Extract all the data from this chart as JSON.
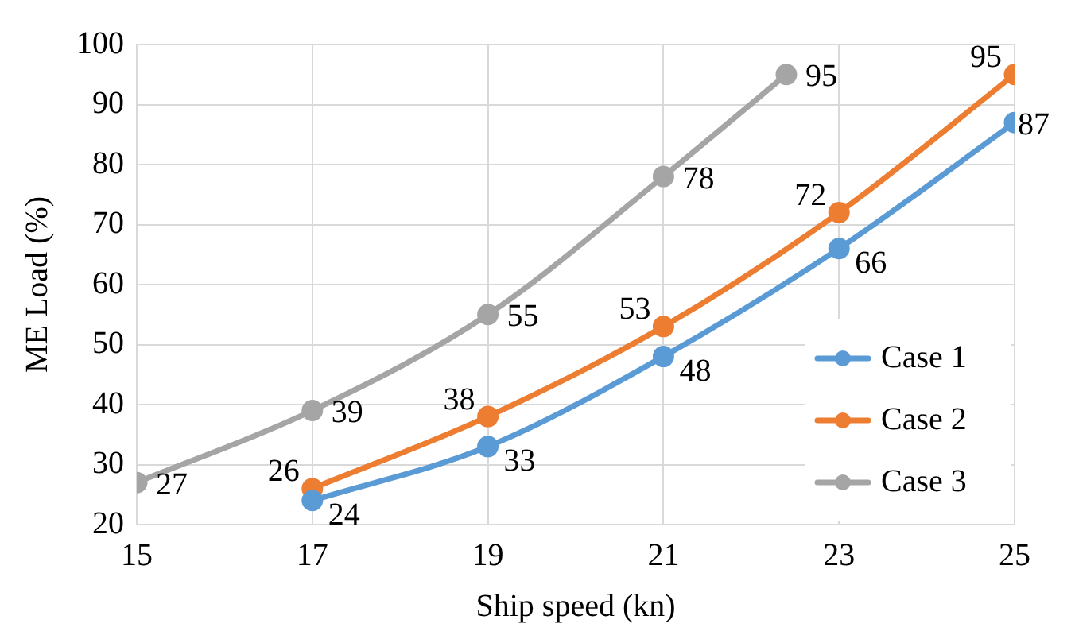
{
  "chart_data": {
    "type": "line",
    "xlabel": "Ship speed (kn)",
    "ylabel": "ME Load (%)",
    "xlim": [
      15,
      25
    ],
    "xticks": [
      15,
      17,
      19,
      21,
      23,
      25
    ],
    "ylim": [
      20,
      100
    ],
    "yticks": [
      20,
      30,
      40,
      50,
      60,
      70,
      80,
      90,
      100
    ],
    "grid": true,
    "legend": "bottom right",
    "marker": "circle",
    "line_style": "solid",
    "data_labels": true,
    "series": [
      {
        "name": "Case 1",
        "color": "#5b9bd5",
        "x": [
          17,
          19,
          21,
          23,
          25
        ],
        "values": [
          24,
          33,
          48,
          66,
          87
        ]
      },
      {
        "name": "Case 2",
        "color": "#ed7d31",
        "x": [
          17,
          19,
          21,
          23,
          25
        ],
        "values": [
          26,
          38,
          53,
          72,
          95
        ]
      },
      {
        "name": "Case 3",
        "color": "#a5a5a5",
        "x": [
          15,
          17,
          19,
          21,
          22.4
        ],
        "values": [
          27,
          39,
          55,
          78,
          95
        ]
      }
    ]
  }
}
